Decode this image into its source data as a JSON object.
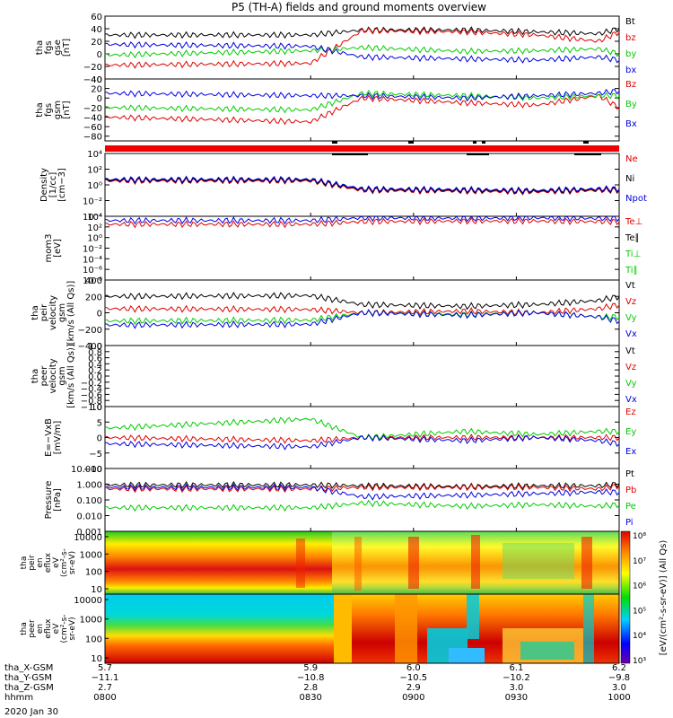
{
  "title": "P5 (TH-A) fields and ground moments overview",
  "chart_data": [
    {
      "type": "line",
      "ylabel": [
        "tha",
        "fgs",
        "gse",
        "[nT]"
      ],
      "ylim": [
        -40,
        60
      ],
      "ticks": [
        "60",
        "40",
        "20",
        "0",
        "−20",
        "−40"
      ],
      "tick_values": [
        60,
        40,
        20,
        0,
        -20,
        -40
      ],
      "legend": [
        {
          "name": "Bt",
          "color": "#000000"
        },
        {
          "name": "bz",
          "color": "#e00000"
        },
        {
          "name": "by",
          "color": "#00cc00"
        },
        {
          "name": "bx",
          "color": "#0000e0"
        }
      ],
      "series": [
        {
          "name": "Bt",
          "color": "#000000",
          "x": [
            5.7,
            5.9,
            5.95,
            6.05,
            6.12,
            6.18,
            6.2
          ],
          "values": [
            30,
            30,
            38,
            38,
            35,
            32,
            40
          ]
        },
        {
          "name": "bz",
          "color": "#e00000",
          "x": [
            5.7,
            5.9,
            5.95,
            6.05,
            6.12,
            6.18,
            6.2
          ],
          "values": [
            -18,
            -15,
            37,
            35,
            30,
            20,
            35
          ]
        },
        {
          "name": "by",
          "color": "#00cc00",
          "x": [
            5.7,
            5.9,
            5.95,
            6.05,
            6.12,
            6.18,
            6.2
          ],
          "values": [
            -2,
            5,
            10,
            4,
            5,
            8,
            0
          ]
        },
        {
          "name": "bx",
          "color": "#0000e0",
          "x": [
            5.7,
            5.9,
            5.95,
            6.05,
            6.12,
            6.18,
            6.2
          ],
          "values": [
            15,
            12,
            -5,
            -8,
            -10,
            -5,
            -10
          ]
        }
      ]
    },
    {
      "type": "line",
      "ylabel": [
        "tha",
        "fgs",
        "gsm",
        "[nT]"
      ],
      "ylim": [
        -90,
        40
      ],
      "ticks": [
        "40",
        "20",
        "0",
        "−20",
        "−40",
        "−60",
        "−80"
      ],
      "tick_values": [
        40,
        20,
        0,
        -20,
        -40,
        -60,
        -80
      ],
      "legend": [
        {
          "name": "Bz",
          "color": "#e00000"
        },
        {
          "name": "By",
          "color": "#00cc00"
        },
        {
          "name": "Bx",
          "color": "#0000e0"
        }
      ],
      "series": [
        {
          "name": "Bz",
          "color": "#e00000",
          "x": [
            5.7,
            5.9,
            5.95,
            6.05,
            6.12,
            6.18,
            6.2
          ],
          "values": [
            -40,
            -50,
            0,
            -10,
            -15,
            5,
            -20
          ]
        },
        {
          "name": "By",
          "color": "#00cc00",
          "x": [
            5.7,
            5.9,
            5.95,
            6.05,
            6.12,
            6.18,
            6.2
          ],
          "values": [
            -20,
            -25,
            10,
            5,
            0,
            5,
            5
          ]
        },
        {
          "name": "Bx",
          "color": "#0000e0",
          "x": [
            5.7,
            5.9,
            5.95,
            6.05,
            6.12,
            6.18,
            6.2
          ],
          "values": [
            10,
            5,
            5,
            0,
            5,
            10,
            15
          ]
        }
      ]
    },
    {
      "type": "line",
      "scale": "log",
      "ylabel": [
        "Density",
        "[1/cc]",
        "[cm−3]"
      ],
      "ylim_exp": [
        -4,
        4
      ],
      "ticks": [
        "10⁴",
        "10²",
        "10⁰",
        "10⁻²",
        "10⁻⁴"
      ],
      "tick_values": [
        4,
        2,
        0,
        -2,
        -4
      ],
      "legend": [
        {
          "name": "Ne",
          "color": "#e00000"
        },
        {
          "name": "Ni",
          "color": "#000000"
        },
        {
          "name": "Npot",
          "color": "#0000e0"
        }
      ],
      "series": [
        {
          "name": "Ne",
          "color": "#e00000",
          "x": [
            5.7,
            5.9,
            5.95,
            6.05,
            6.12,
            6.18,
            6.2
          ],
          "values": [
            0.5,
            0.5,
            -0.7,
            -0.8,
            -0.9,
            -0.7,
            -0.7
          ]
        },
        {
          "name": "Ni",
          "color": "#000000",
          "x": [
            5.7,
            5.9,
            5.95,
            6.05,
            6.12,
            6.18,
            6.2
          ],
          "values": [
            0.6,
            0.6,
            -0.6,
            -0.7,
            -0.8,
            -0.6,
            -0.6
          ]
        },
        {
          "name": "Npot",
          "color": "#0000e0",
          "x": [
            5.7,
            5.9,
            5.95,
            6.05,
            6.12,
            6.18,
            6.2
          ],
          "values": [
            0.7,
            0.7,
            -0.5,
            -0.6,
            -0.7,
            -0.5,
            -0.5
          ]
        }
      ]
    },
    {
      "type": "line",
      "scale": "log",
      "ylabel": [
        "mom3",
        "[eV]"
      ],
      "ylim_exp": [
        -8,
        4
      ],
      "ticks": [
        "10⁴",
        "10²",
        "10⁰",
        "10⁻²",
        "10⁻⁴",
        "10⁻⁶",
        "10⁻⁸"
      ],
      "tick_values": [
        4,
        2,
        0,
        -2,
        -4,
        -6,
        -8
      ],
      "legend": [
        {
          "name": "Te⊥",
          "color": "#e00000"
        },
        {
          "name": "Te∥",
          "color": "#000000"
        },
        {
          "name": "Ti⊥",
          "color": "#00cc00"
        },
        {
          "name": "Ti∥",
          "color": "#00cc00"
        }
      ],
      "series": [
        {
          "name": "Ti",
          "color": "#0000e0",
          "x": [
            5.7,
            5.9,
            5.95,
            6.05,
            6.12,
            6.18,
            6.2
          ],
          "values": [
            3.2,
            3.2,
            3.7,
            3.6,
            3.7,
            3.6,
            3.6
          ]
        },
        {
          "name": "Te",
          "color": "#e00000",
          "x": [
            5.7,
            5.9,
            5.95,
            6.05,
            6.12,
            6.18,
            6.2
          ],
          "values": [
            2.5,
            2.5,
            3.0,
            3.1,
            3.1,
            3.0,
            3.0
          ]
        }
      ]
    },
    {
      "type": "line",
      "ylabel": [
        "tha",
        "peir",
        "velocity",
        "gsm",
        "[km/s (All Qs)]"
      ],
      "ylim": [
        -400,
        400
      ],
      "ticks": [
        "400",
        "200",
        "0",
        "−200",
        "−400"
      ],
      "tick_values": [
        400,
        200,
        0,
        -200,
        -400
      ],
      "legend": [
        {
          "name": "Vt",
          "color": "#000000"
        },
        {
          "name": "Vz",
          "color": "#e00000"
        },
        {
          "name": "Vy",
          "color": "#00cc00"
        },
        {
          "name": "Vx",
          "color": "#0000e0"
        }
      ],
      "series": [
        {
          "name": "Vt",
          "color": "#000000",
          "x": [
            5.7,
            5.9,
            5.95,
            6.05,
            6.12,
            6.18,
            6.2
          ],
          "values": [
            200,
            210,
            100,
            80,
            100,
            150,
            200
          ]
        },
        {
          "name": "Vz",
          "color": "#e00000",
          "x": [
            5.7,
            5.9,
            5.95,
            6.05,
            6.12,
            6.18,
            6.2
          ],
          "values": [
            50,
            40,
            0,
            20,
            0,
            50,
            100
          ]
        },
        {
          "name": "Vy",
          "color": "#00cc00",
          "x": [
            5.7,
            5.9,
            5.95,
            6.05,
            6.12,
            6.18,
            6.2
          ],
          "values": [
            -100,
            -90,
            0,
            -20,
            0,
            -50,
            -50
          ]
        },
        {
          "name": "Vx",
          "color": "#0000e0",
          "x": [
            5.7,
            5.9,
            5.95,
            6.05,
            6.12,
            6.18,
            6.2
          ],
          "values": [
            -150,
            -140,
            0,
            -30,
            0,
            -50,
            -100
          ]
        }
      ]
    },
    {
      "type": "line",
      "ylabel": [
        "tha",
        "peer",
        "velocity",
        "gsm",
        "[km/s (All Qs)]"
      ],
      "ylim": [
        -1,
        1
      ],
      "ticks": [
        "1.0",
        "0.8",
        "0.6",
        "0.4",
        "0.2",
        "0.0",
        "−0.2",
        "−0.4",
        "−0.6",
        "−0.8",
        "−1.0"
      ],
      "tick_values": [
        1.0,
        0.8,
        0.6,
        0.4,
        0.2,
        0.0,
        -0.2,
        -0.4,
        -0.6,
        -0.8,
        -1.0
      ],
      "legend": [
        {
          "name": "Vt",
          "color": "#000000"
        },
        {
          "name": "Vz",
          "color": "#e00000"
        },
        {
          "name": "Vy",
          "color": "#00cc00"
        },
        {
          "name": "Vx",
          "color": "#0000e0"
        }
      ],
      "series": []
    },
    {
      "type": "line",
      "ylabel": [
        "E=−VxB",
        "[mV/m]"
      ],
      "ylim": [
        -10,
        10
      ],
      "ticks": [
        "10",
        "5",
        "0",
        "−5",
        "−10"
      ],
      "tick_values": [
        10,
        5,
        0,
        -5,
        -10
      ],
      "legend": [
        {
          "name": "Ez",
          "color": "#e00000"
        },
        {
          "name": "Ey",
          "color": "#00cc00"
        },
        {
          "name": "Ex",
          "color": "#0000e0"
        }
      ],
      "series": [
        {
          "name": "Ez",
          "color": "#e00000",
          "x": [
            5.7,
            5.9,
            5.95,
            6.05,
            6.12,
            6.18,
            6.2
          ],
          "values": [
            0,
            -1,
            0,
            0,
            0,
            0,
            0
          ]
        },
        {
          "name": "Ey",
          "color": "#00cc00",
          "x": [
            5.7,
            5.9,
            5.95,
            6.05,
            6.12,
            6.18,
            6.2
          ],
          "values": [
            3,
            6,
            0,
            2,
            1,
            2,
            2
          ]
        },
        {
          "name": "Ex",
          "color": "#0000e0",
          "x": [
            5.7,
            5.9,
            5.95,
            6.05,
            6.12,
            6.18,
            6.2
          ],
          "values": [
            -2,
            -3,
            0,
            -1,
            0,
            -1,
            -2
          ]
        }
      ]
    },
    {
      "type": "line",
      "scale": "log",
      "ylabel": [
        "Pressure",
        "[nPa]"
      ],
      "ylim_exp": [
        -3,
        1
      ],
      "ticks": [
        "10.000",
        "1.000",
        "0.100",
        "0.010",
        "0.001"
      ],
      "tick_values": [
        1,
        0,
        -1,
        -2,
        -3
      ],
      "legend": [
        {
          "name": "Pt",
          "color": "#000000"
        },
        {
          "name": "Pb",
          "color": "#e00000"
        },
        {
          "name": "Pe",
          "color": "#00cc00"
        },
        {
          "name": "Pi",
          "color": "#0000e0"
        }
      ],
      "series": [
        {
          "name": "Pt",
          "color": "#000000",
          "x": [
            5.7,
            5.9,
            5.95,
            6.05,
            6.12,
            6.18,
            6.2
          ],
          "values": [
            -0.05,
            -0.05,
            -0.1,
            -0.15,
            -0.1,
            -0.1,
            0
          ]
        },
        {
          "name": "Pb",
          "color": "#e00000",
          "x": [
            5.7,
            5.9,
            5.95,
            6.05,
            6.12,
            6.18,
            6.2
          ],
          "values": [
            -0.3,
            -0.3,
            -0.2,
            -0.2,
            -0.2,
            -0.3,
            -0.1
          ]
        },
        {
          "name": "Pe",
          "color": "#00cc00",
          "x": [
            5.7,
            5.9,
            5.95,
            6.05,
            6.12,
            6.18,
            6.2
          ],
          "values": [
            -1.5,
            -1.5,
            -1.2,
            -1.4,
            -1.3,
            -1.4,
            -1.3
          ]
        },
        {
          "name": "Pi",
          "color": "#0000e0",
          "x": [
            5.7,
            5.9,
            5.95,
            6.05,
            6.12,
            6.18,
            6.2
          ],
          "values": [
            -0.2,
            -0.2,
            -0.8,
            -0.7,
            -0.6,
            -0.5,
            -0.5
          ]
        }
      ]
    },
    {
      "type": "heatmap",
      "ylabel": [
        "tha",
        "peir",
        "en",
        "eflux",
        "eV",
        "(cm²-s-",
        "sr-eV)"
      ],
      "yticks": [
        "10000",
        "1000",
        "100",
        "10"
      ]
    },
    {
      "type": "heatmap",
      "ylabel": [
        "tha",
        "peer",
        "en",
        "eflux",
        "eV",
        "(cm²-s-",
        "sr-eV)"
      ],
      "yticks": [
        "10000",
        "1000",
        "100",
        "10"
      ]
    }
  ],
  "colorbar": {
    "ticks": [
      "10⁸",
      "10⁷",
      "10⁶",
      "10⁵",
      "10⁴",
      "10³"
    ],
    "label": "[eV/(cm²-s-sr-eV)] (All Qs)"
  },
  "xaxis": {
    "range": [
      5.7,
      6.2
    ],
    "rows": [
      {
        "label": "tha_X-GSM",
        "values": [
          "5.7",
          "5.9",
          "6.0",
          "6.1",
          "6.2"
        ]
      },
      {
        "label": "tha_Y-GSM",
        "values": [
          "−11.1",
          "−10.8",
          "−10.5",
          "−10.2",
          "−9.8"
        ]
      },
      {
        "label": "tha_Z-GSM",
        "values": [
          "2.7",
          "2.8",
          "2.9",
          "3.0",
          "3.0"
        ]
      },
      {
        "label": "hhmm",
        "values": [
          "0800",
          "0830",
          "0900",
          "0930",
          "1000"
        ]
      }
    ],
    "date": "2020 Jan 30"
  }
}
